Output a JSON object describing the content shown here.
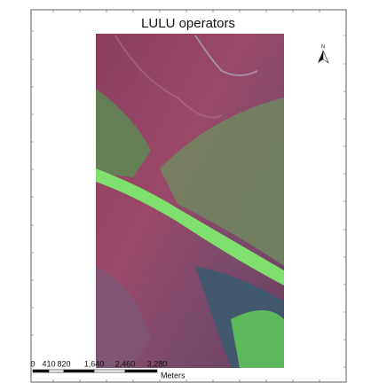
{
  "title": "LULU operators",
  "north_arrow": {
    "label": "N"
  },
  "scale_bar": {
    "labels": [
      "0",
      "410",
      "820",
      "1,640",
      "2,460",
      "3,280"
    ],
    "unit": "Meters"
  }
}
